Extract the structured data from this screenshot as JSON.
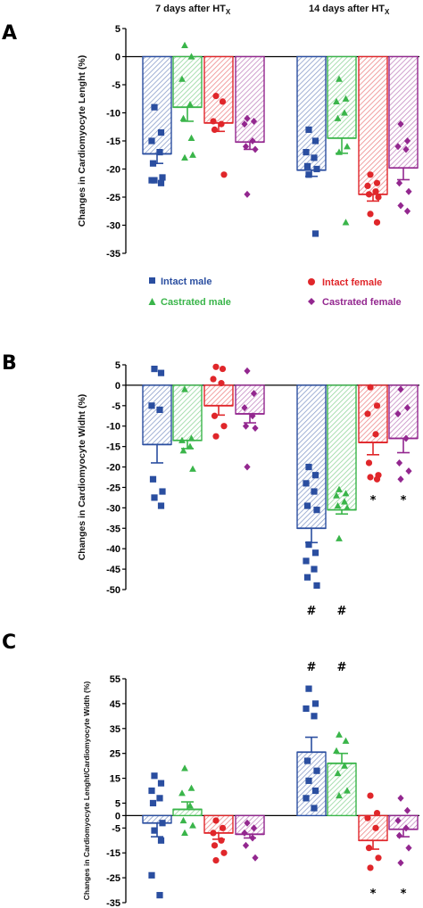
{
  "colors": {
    "intact_male": "#2a4ea0",
    "castrated_male": "#3ab54a",
    "intact_female": "#e0262a",
    "castrated_female": "#93278f"
  },
  "headers": {
    "left": "7 days after HT",
    "left_sub": "X",
    "right": "14 days after HT",
    "right_sub": "X"
  },
  "legend": [
    {
      "key": "intact_male",
      "label": "Intact male",
      "marker": "square"
    },
    {
      "key": "castrated_male",
      "label": "Castrated male",
      "marker": "triangle"
    },
    {
      "key": "intact_female",
      "label": "Intact female",
      "marker": "circle"
    },
    {
      "key": "castrated_female",
      "label": "Castrated female",
      "marker": "diamond"
    }
  ],
  "chart_data": [
    {
      "panel": "A",
      "type": "bar",
      "ylabel": "Changes in Cardiomyocyte Lenght (%)",
      "ylim": [
        -35,
        5
      ],
      "yticks": [
        5,
        0,
        -5,
        -10,
        -15,
        -20,
        -25,
        -30,
        -35
      ],
      "groups": [
        "7 days after HTX",
        "14 days after HTX"
      ],
      "series": [
        {
          "name": "Intact male",
          "key": "intact_male",
          "marker": "square",
          "means": [
            -17.3,
            -20.2
          ],
          "sem": [
            1.7,
            1.1
          ],
          "points": [
            [
              -9,
              -13.5,
              -15,
              -17,
              -19,
              -21.5,
              -22,
              -22.5,
              -22
            ],
            [
              -13,
              -15,
              -17,
              -18,
              -19.5,
              -20,
              -21,
              -31.5
            ]
          ]
        },
        {
          "name": "Castrated male",
          "key": "castrated_male",
          "marker": "triangle",
          "means": [
            -9.0,
            -14.5
          ],
          "sem": [
            2.5,
            2.7
          ],
          "points": [
            [
              2,
              0,
              -4,
              -8.5,
              -11,
              -17.5,
              -18,
              -14.5
            ],
            [
              -4,
              -7.5,
              -8,
              -10,
              -11,
              -16,
              -17,
              -29.5
            ]
          ]
        },
        {
          "name": "Intact female",
          "key": "intact_female",
          "marker": "circle",
          "means": [
            -11.8,
            -24.5
          ],
          "sem": [
            1.5,
            1.2
          ],
          "points": [
            [
              -7,
              -8,
              -11.5,
              -12,
              -13,
              -21
            ],
            [
              -21,
              -22.5,
              -23,
              -24,
              -24.5,
              -25,
              -28,
              -29.5
            ]
          ]
        },
        {
          "name": "Castrated female",
          "key": "castrated_female",
          "marker": "diamond",
          "means": [
            -15.2,
            -19.8
          ],
          "sem": [
            1.3,
            2.1
          ],
          "points": [
            [
              -11,
              -11.5,
              -12,
              -15,
              -16,
              -16.5,
              -24.5
            ],
            [
              -12,
              -15,
              -16,
              -16.5,
              -22.5,
              -24,
              -26.5,
              -27.5
            ]
          ]
        }
      ],
      "annotations": []
    },
    {
      "panel": "B",
      "type": "bar",
      "ylabel": "Changes in Cardiomyocyte Widht (%)",
      "ylim": [
        -50,
        5
      ],
      "yticks": [
        5,
        0,
        -5,
        -10,
        -15,
        -20,
        -25,
        -30,
        -35,
        -40,
        -45,
        -50
      ],
      "groups": [
        "7 days after HTX",
        "14 days after HTX"
      ],
      "series": [
        {
          "name": "Intact male",
          "key": "intact_male",
          "marker": "square",
          "means": [
            -14.5,
            -35.0
          ],
          "sem": [
            4.5,
            3.5
          ],
          "points": [
            [
              4,
              3,
              -5,
              -6,
              -23,
              -26,
              -27.5,
              -29.5
            ],
            [
              -20,
              -22,
              -24,
              -26,
              -29.5,
              -30.5,
              -39,
              -41,
              -43,
              -45,
              -47,
              -49
            ]
          ]
        },
        {
          "name": "Castrated male",
          "key": "castrated_male",
          "marker": "triangle",
          "means": [
            -13.5,
            -30.5
          ],
          "sem": [
            2.0,
            1.0
          ],
          "points": [
            [
              -1,
              -13,
              -13.5,
              -15,
              -16,
              -20.5
            ],
            [
              -25.5,
              -26.5,
              -27,
              -28.5,
              -29.5,
              -30,
              -37.5
            ]
          ]
        },
        {
          "name": "Intact female",
          "key": "intact_female",
          "marker": "circle",
          "means": [
            -5.0,
            -14.0
          ],
          "sem": [
            2.3,
            3.0
          ],
          "points": [
            [
              4.5,
              4,
              1.5,
              0.5,
              -7.5,
              -10,
              -12.5
            ],
            [
              -0.5,
              -5,
              -7,
              -12,
              -19,
              -22,
              -22.5,
              -23
            ]
          ]
        },
        {
          "name": "Castrated female",
          "key": "castrated_female",
          "marker": "diamond",
          "means": [
            -7.0,
            -13.0
          ],
          "sem": [
            2.2,
            3.5
          ],
          "points": [
            [
              3.5,
              -2,
              -5.5,
              -7.5,
              -10,
              -10.5,
              -20
            ],
            [
              -1,
              -5.5,
              -7,
              -13,
              -19,
              -21,
              -23
            ]
          ]
        }
      ],
      "annotations": [
        {
          "group": 1,
          "series": 0,
          "symbol": "#",
          "y": -55
        },
        {
          "group": 1,
          "series": 1,
          "symbol": "#",
          "y": -55
        },
        {
          "group": 1,
          "series": 2,
          "symbol": "*",
          "y": -28
        },
        {
          "group": 1,
          "series": 3,
          "symbol": "*",
          "y": -28
        }
      ]
    },
    {
      "panel": "C",
      "type": "bar",
      "ylabel": "Changes in Cardiomyocyte Lenght/Cardiomyocyte Width (%)",
      "ylim": [
        -35,
        55
      ],
      "yticks": [
        55,
        45,
        35,
        25,
        15,
        5,
        0,
        -5,
        -15,
        -25,
        -35
      ],
      "groups": [
        "7 days after HTX",
        "14 days after HTX"
      ],
      "series": [
        {
          "name": "Intact male",
          "key": "intact_male",
          "marker": "square",
          "means": [
            -3.0,
            25.5
          ],
          "sem": [
            5.5,
            6.0
          ],
          "points": [
            [
              16,
              13,
              10,
              7,
              5,
              -3,
              -6,
              -10,
              -24,
              -32
            ],
            [
              51,
              45,
              43,
              40,
              22,
              18,
              14,
              10,
              7,
              3
            ]
          ]
        },
        {
          "name": "Castrated male",
          "key": "castrated_male",
          "marker": "triangle",
          "means": [
            2.5,
            21.0
          ],
          "sem": [
            3.0,
            4.0
          ],
          "points": [
            [
              19,
              11,
              9,
              4,
              -2,
              -4,
              -7
            ],
            [
              32.5,
              30,
              26,
              20,
              17,
              10,
              8
            ]
          ]
        },
        {
          "name": "Intact female",
          "key": "intact_female",
          "marker": "circle",
          "means": [
            -7.0,
            -10.0
          ],
          "sem": [
            2.5,
            3.5
          ],
          "points": [
            [
              -2,
              -5,
              -7,
              -10,
              -12,
              -15,
              -18
            ],
            [
              8,
              1,
              -1,
              -5,
              -13,
              -17,
              -21
            ]
          ]
        },
        {
          "name": "Castrated female",
          "key": "castrated_female",
          "marker": "diamond",
          "means": [
            -7.5,
            -5.5
          ],
          "sem": [
            1.5,
            3.0
          ],
          "points": [
            [
              -3,
              -5,
              -7,
              -9,
              -12,
              -17
            ],
            [
              7,
              2,
              -2,
              -5,
              -8,
              -13,
              -19
            ]
          ]
        }
      ],
      "annotations": [
        {
          "group": 1,
          "series": 0,
          "symbol": "#",
          "y": 60
        },
        {
          "group": 1,
          "series": 1,
          "symbol": "#",
          "y": 60
        },
        {
          "group": 1,
          "series": 2,
          "symbol": "*",
          "y": -31
        },
        {
          "group": 1,
          "series": 3,
          "symbol": "*",
          "y": -31
        }
      ]
    }
  ]
}
